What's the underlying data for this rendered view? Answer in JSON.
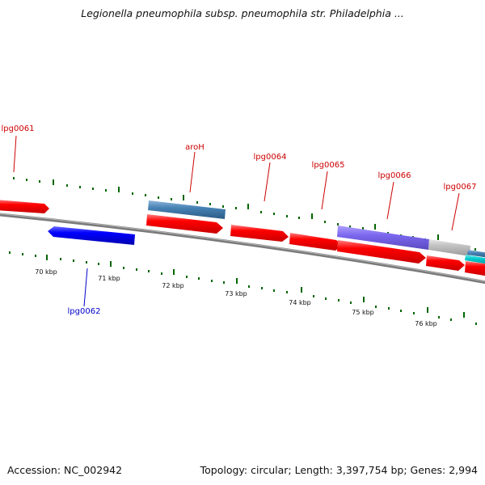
{
  "title": "Legionella pneumophila subsp. pneumophila str. Philadelphia ...",
  "footer": {
    "accession": "Accession: NC_002942",
    "summary": "Topology: circular; Length: 3,397,754 bp; Genes: 2,994"
  },
  "colors": {
    "forward_gene": "#ff0000",
    "reverse_gene": "#0000ff",
    "label_forward": "#cc0000",
    "label_reverse": "#0000cc",
    "tick": "#006600",
    "backbone": "#808080",
    "feature_blue": "#4682b4",
    "feature_purple": "#7b68ee",
    "feature_gray": "#c0c0c0",
    "feature_cyan": "#00ced1"
  },
  "gene_labels": [
    {
      "id": "lpg0061",
      "text": "lpg0061",
      "strand": "forward"
    },
    {
      "id": "aroH",
      "text": "aroH",
      "strand": "forward"
    },
    {
      "id": "lpg0064",
      "text": "lpg0064",
      "strand": "forward"
    },
    {
      "id": "lpg0065",
      "text": "lpg0065",
      "strand": "forward"
    },
    {
      "id": "lpg0066",
      "text": "lpg0066",
      "strand": "forward"
    },
    {
      "id": "lpg0067",
      "text": "lpg0067",
      "strand": "forward"
    },
    {
      "id": "lpg0062",
      "text": "lpg0062",
      "strand": "reverse"
    }
  ],
  "scale_labels": [
    "70 kbp",
    "71 kbp",
    "72 kbp",
    "73 kbp",
    "74 kbp",
    "75 kbp",
    "76 kbp"
  ]
}
